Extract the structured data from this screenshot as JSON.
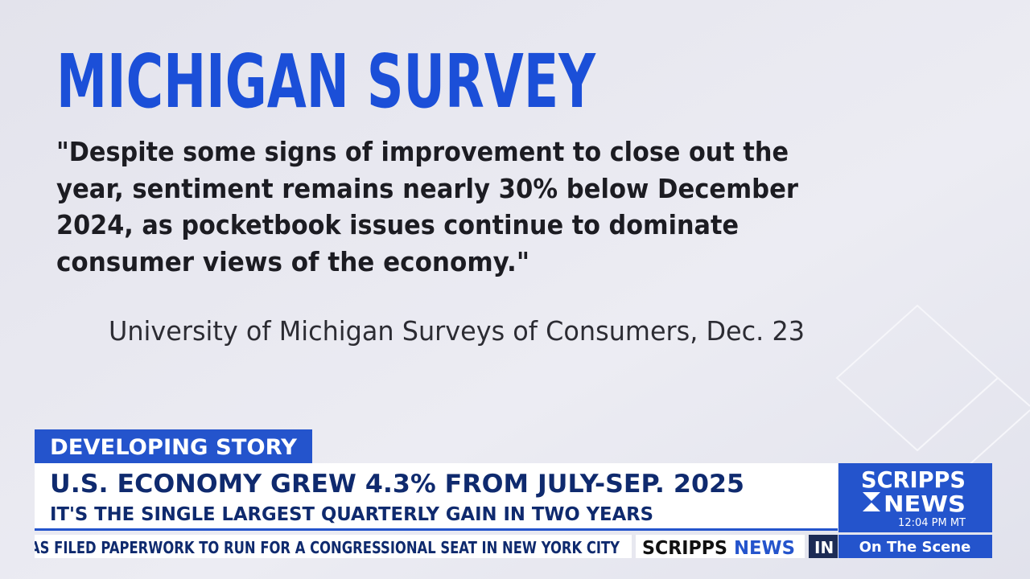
{
  "slide": {
    "title": "MICHIGAN SURVEY",
    "quote_lines": [
      "\"Despite some signs of improvement to close out the",
      "year, sentiment remains nearly 30% below December",
      "2024, as pocketbook issues continue to dominate",
      "consumer views of the economy.\""
    ],
    "attribution": "University of Michigan Surveys of Consumers, Dec. 23"
  },
  "lower_third": {
    "label": "DEVELOPING STORY",
    "headline": "U.S. ECONOMY GREW 4.3% FROM JULY-SEP. 2025",
    "subheadline": "IT'S THE SINGLE LARGEST QUARTERLY GAIN IN TWO YEARS"
  },
  "ticker": {
    "text": "AS FILED PAPERWORK TO RUN FOR A CONGRESSIONAL SEAT IN NEW YORK CITY",
    "brand_1": "SCRIPPS",
    "brand_2": "NEWS",
    "next": "IN"
  },
  "logo": {
    "line_1": "SCRIPPS",
    "line_2": "NEWS",
    "time": "12:04 PM MT",
    "tag": "On The Scene"
  }
}
